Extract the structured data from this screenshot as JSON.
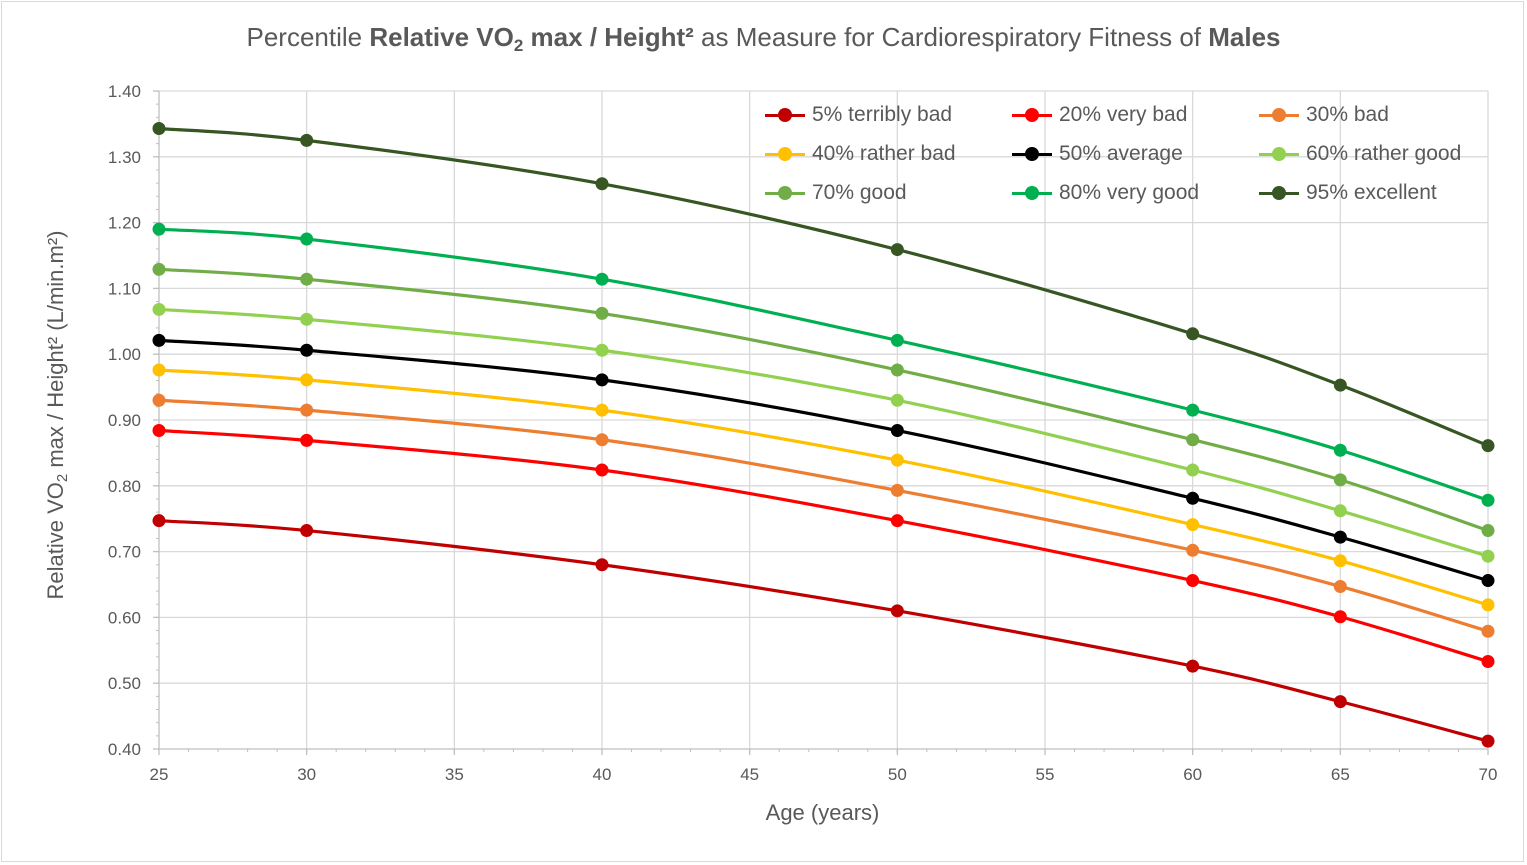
{
  "chart_data": {
    "type": "line",
    "title_parts": {
      "prefix": "Percentile ",
      "bold1": "Relative VO",
      "bold1_sub": "2",
      "bold2": " max / Height²",
      "middle": " as Measure for Cardiorespiratory Fitness of ",
      "bold3": "Males"
    },
    "xlabel": "Age (years)",
    "ylabel_parts": {
      "pre": "Relative VO",
      "sub": "2",
      "post": " max / Height² (L/min.m²)"
    },
    "xlim": [
      25,
      70
    ],
    "ylim": [
      0.4,
      1.4
    ],
    "xticks": [
      "25",
      "30",
      "35",
      "40",
      "45",
      "50",
      "55",
      "60",
      "65",
      "70"
    ],
    "yticks": [
      "0.40",
      "0.50",
      "0.60",
      "0.70",
      "0.80",
      "0.90",
      "1.00",
      "1.10",
      "1.20",
      "1.30",
      "1.40"
    ],
    "grid": true,
    "legend_position": "top-right",
    "x": [
      25,
      30,
      40,
      50,
      60,
      65,
      70
    ],
    "series": [
      {
        "name": "5% terribly bad",
        "color": "#c00000",
        "values": [
          0.747,
          0.732,
          0.68,
          0.61,
          0.526,
          0.472,
          0.412
        ]
      },
      {
        "name": "20% very bad",
        "color": "#ff0000",
        "values": [
          0.884,
          0.869,
          0.824,
          0.747,
          0.656,
          0.601,
          0.533
        ]
      },
      {
        "name": "30% bad",
        "color": "#ed7d31",
        "values": [
          0.93,
          0.915,
          0.87,
          0.793,
          0.702,
          0.647,
          0.579
        ]
      },
      {
        "name": "40% rather bad",
        "color": "#ffc000",
        "values": [
          0.976,
          0.961,
          0.915,
          0.839,
          0.741,
          0.686,
          0.619
        ]
      },
      {
        "name": "50% average",
        "color": "#000000",
        "values": [
          1.021,
          1.006,
          0.961,
          0.884,
          0.781,
          0.722,
          0.656
        ]
      },
      {
        "name": "60% rather good",
        "color": "#92d050",
        "values": [
          1.068,
          1.053,
          1.006,
          0.93,
          0.824,
          0.762,
          0.693
        ]
      },
      {
        "name": "70% good",
        "color": "#70ad47",
        "values": [
          1.129,
          1.114,
          1.062,
          0.976,
          0.87,
          0.809,
          0.732
        ]
      },
      {
        "name": "80% very good",
        "color": "#00b050",
        "values": [
          1.19,
          1.175,
          1.114,
          1.021,
          0.915,
          0.854,
          0.778
        ]
      },
      {
        "name": "95% excellent",
        "color": "#375623",
        "values": [
          1.343,
          1.325,
          1.259,
          1.159,
          1.031,
          0.953,
          0.861
        ]
      }
    ]
  }
}
